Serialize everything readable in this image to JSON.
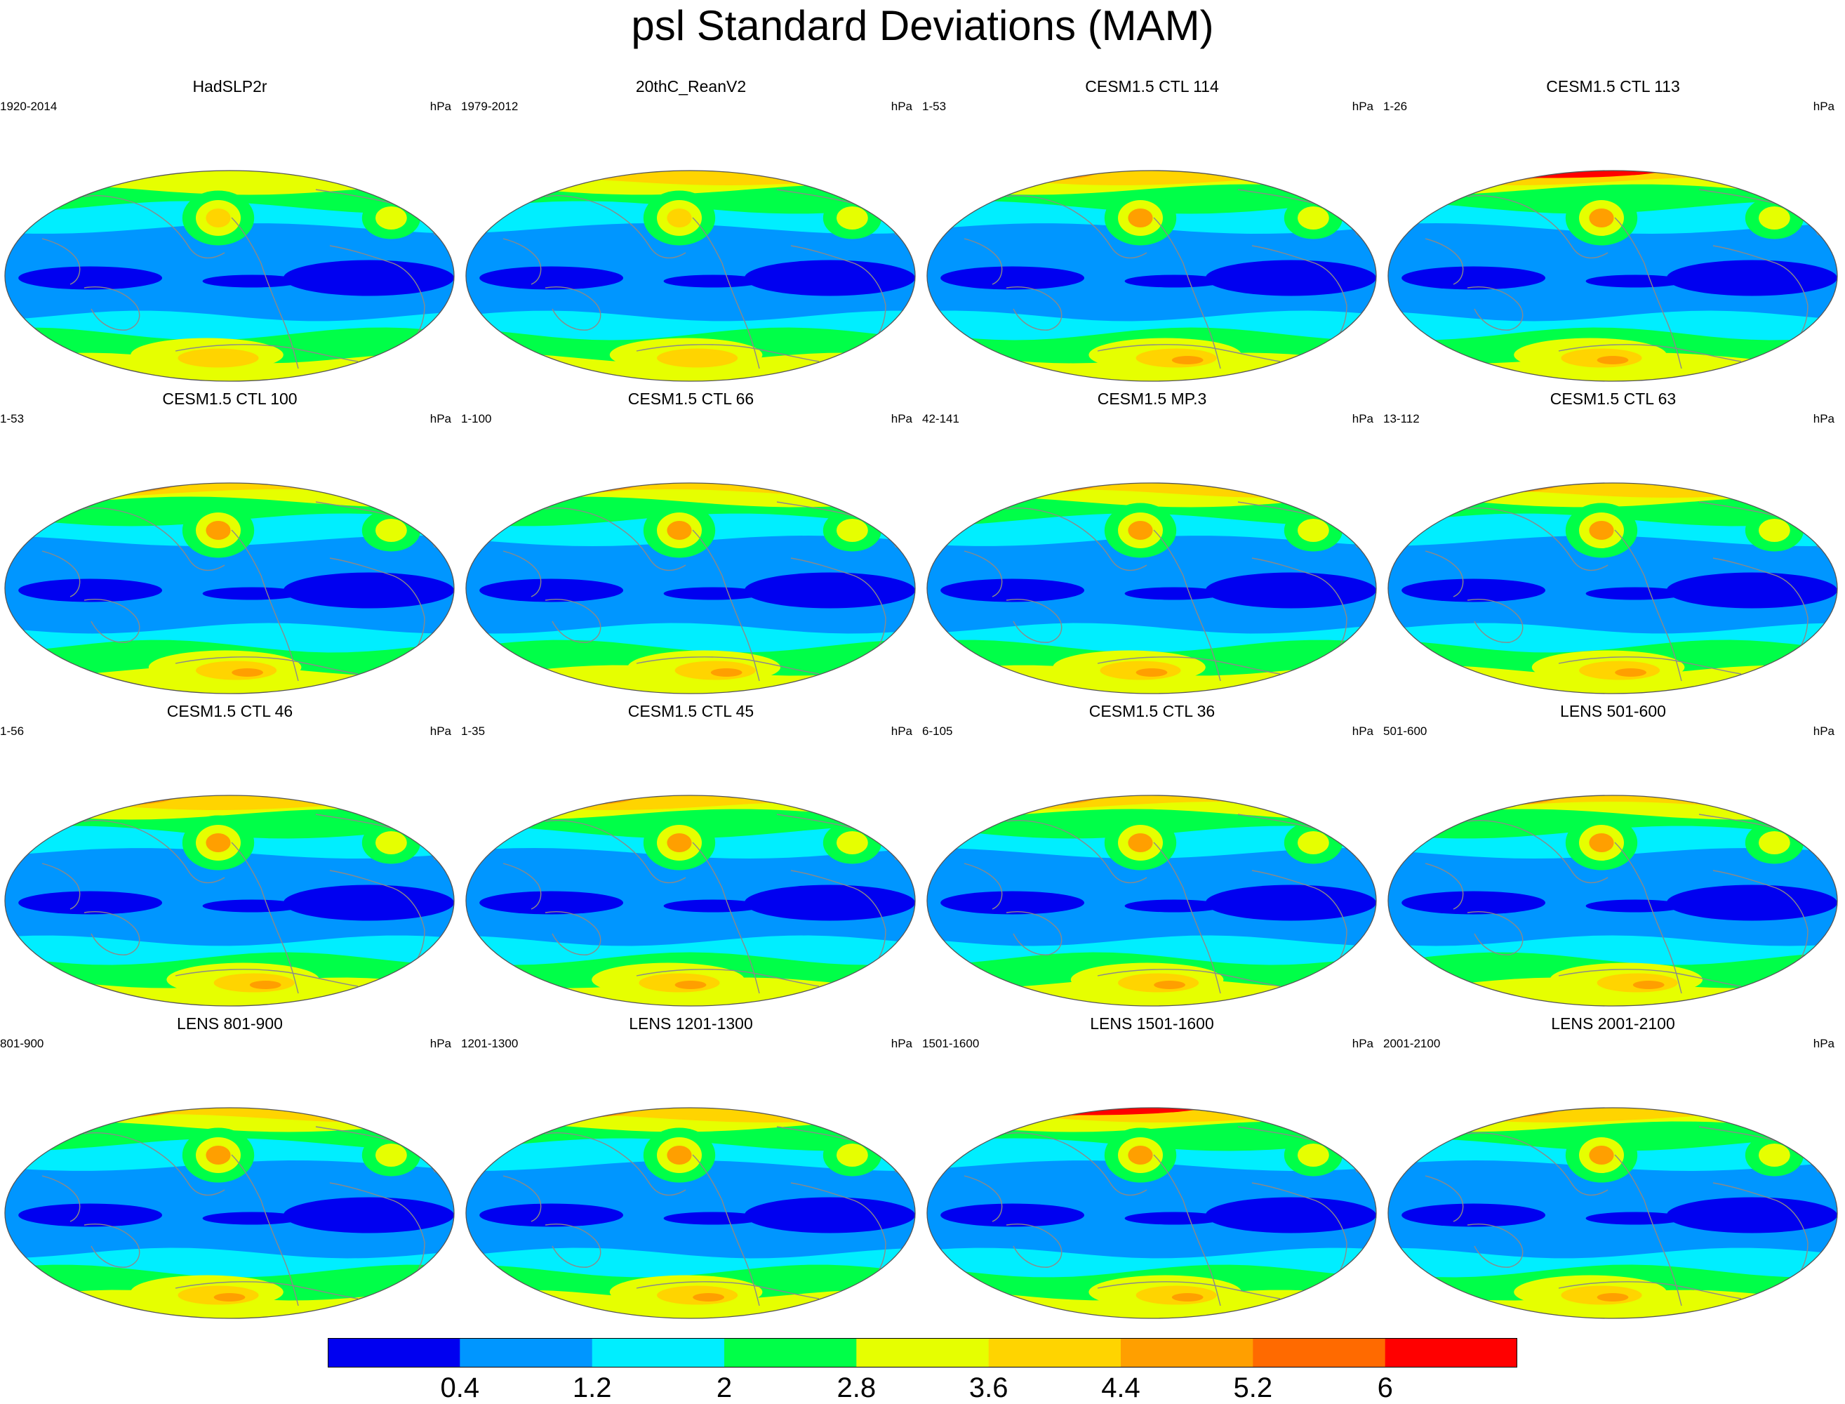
{
  "title": "psl Standard Deviations (MAM)",
  "panels": [
    {
      "title": "HadSLP2r",
      "period": "1920-2014",
      "units": "hPa",
      "variant": 0
    },
    {
      "title": "20thC_ReanV2",
      "period": "1979-2012",
      "units": "hPa",
      "variant": 1
    },
    {
      "title": "CESM1.5 CTL 114",
      "period": "1-53",
      "units": "hPa",
      "variant": 2
    },
    {
      "title": "CESM1.5 CTL 113",
      "period": "1-26",
      "units": "hPa",
      "variant": 3
    },
    {
      "title": "CESM1.5 CTL 100",
      "period": "1-53",
      "units": "hPa",
      "variant": 2
    },
    {
      "title": "CESM1.5 CTL 66",
      "period": "1-100",
      "units": "hPa",
      "variant": 2
    },
    {
      "title": "CESM1.5 MP.3",
      "period": "42-141",
      "units": "hPa",
      "variant": 2
    },
    {
      "title": "CESM1.5 CTL 63",
      "period": "13-112",
      "units": "hPa",
      "variant": 2
    },
    {
      "title": "CESM1.5 CTL 46",
      "period": "1-56",
      "units": "hPa",
      "variant": 2
    },
    {
      "title": "CESM1.5 CTL 45",
      "period": "1-35",
      "units": "hPa",
      "variant": 2
    },
    {
      "title": "CESM1.5 CTL 36",
      "period": "6-105",
      "units": "hPa",
      "variant": 2
    },
    {
      "title": "LENS 501-600",
      "period": "501-600",
      "units": "hPa",
      "variant": 2
    },
    {
      "title": "LENS 801-900",
      "period": "801-900",
      "units": "hPa",
      "variant": 2
    },
    {
      "title": "LENS 1201-1300",
      "period": "1201-1300",
      "units": "hPa",
      "variant": 2
    },
    {
      "title": "LENS 1501-1600",
      "period": "1501-1600",
      "units": "hPa",
      "variant": 3
    },
    {
      "title": "LENS 2001-2100",
      "period": "2001-2100",
      "units": "hPa",
      "variant": 2
    }
  ],
  "colorbar": {
    "colors": [
      "#0000f0",
      "#0096ff",
      "#00eeff",
      "#00ff48",
      "#e6ff00",
      "#ffd400",
      "#ff9f00",
      "#ff6a00",
      "#ff0000"
    ],
    "labels": [
      "0.4",
      "1.2",
      "2",
      "2.8",
      "3.6",
      "4.4",
      "5.2",
      "6"
    ]
  },
  "coastline_color": "#8a8a8a"
}
